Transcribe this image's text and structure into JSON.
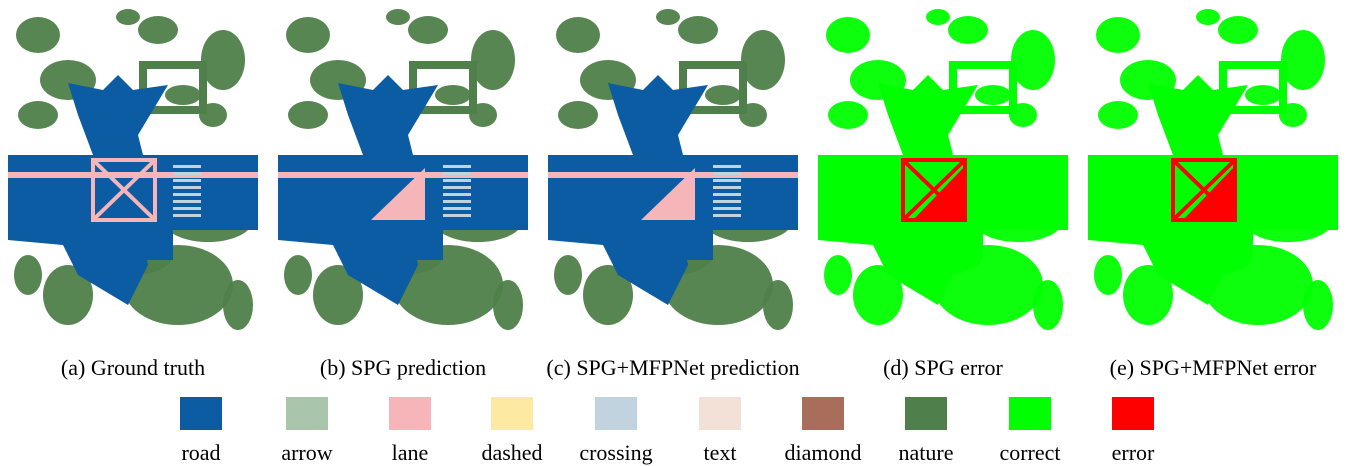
{
  "figure": {
    "panels": [
      {
        "caption": "(a) Ground truth",
        "mode": "gt"
      },
      {
        "caption": "(b) SPG prediction",
        "mode": "pred"
      },
      {
        "caption": "(c) SPG+MFPNet prediction",
        "mode": "pred"
      },
      {
        "caption": "(d) SPG error",
        "mode": "error"
      },
      {
        "caption": "(e) SPG+MFPNet error",
        "mode": "error"
      }
    ],
    "legend": [
      {
        "label": "road",
        "color": "#0b5ca3"
      },
      {
        "label": "arrow",
        "color": "#a9c6ac"
      },
      {
        "label": "lane",
        "color": "#f6b5b8"
      },
      {
        "label": "dashed",
        "color": "#fde9a2"
      },
      {
        "label": "crossing",
        "color": "#c0d3df"
      },
      {
        "label": "text",
        "color": "#f3e0d6"
      },
      {
        "label": "diamond",
        "color": "#a86d5b"
      },
      {
        "label": "nature",
        "color": "#4f7f4a"
      },
      {
        "label": "correct",
        "color": "#00ff00"
      },
      {
        "label": "error",
        "color": "#ff0000"
      }
    ]
  }
}
